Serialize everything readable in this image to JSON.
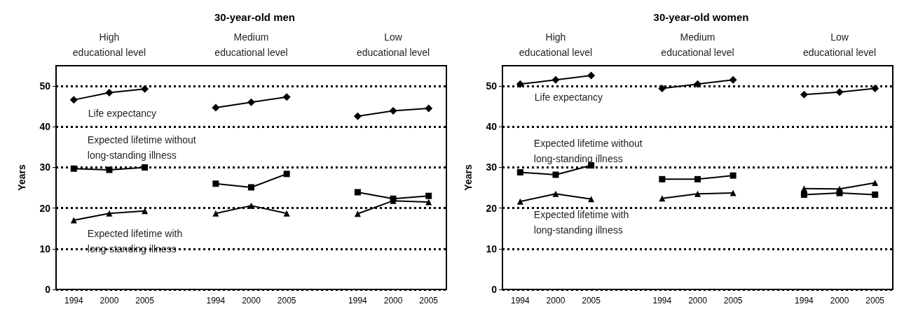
{
  "chart_data": [
    {
      "type": "line",
      "title": "30-year-old men",
      "ylabel": "Years",
      "annotations": [
        "High\neducational level",
        "Medium\neducational level",
        "Low\neducational level"
      ],
      "categories": [
        "1994",
        "2000",
        "2005",
        null,
        "1994",
        "2000",
        "2005",
        null,
        "1994",
        "2000",
        "2005"
      ],
      "ylim": [
        0,
        55
      ],
      "yticks": [
        0,
        10,
        20,
        30,
        40,
        50
      ],
      "grid": "y",
      "line_style": "solid",
      "series": [
        {
          "name": "Life expectancy",
          "color": "#000000",
          "marker": "diamond",
          "values": [
            46.6,
            48.4,
            49.3,
            null,
            44.7,
            46.0,
            47.3,
            null,
            42.6,
            43.9,
            44.5
          ]
        },
        {
          "name": "Expected lifetime without\nlong-standing illness",
          "color": "#000000",
          "marker": "square",
          "values": [
            29.7,
            29.4,
            30.0,
            null,
            26.0,
            25.1,
            28.4,
            null,
            23.9,
            22.3,
            23.0
          ]
        },
        {
          "name": "Expected lifetime with\nlong-standing illness",
          "color": "#000000",
          "marker": "triangle",
          "values": [
            17.0,
            18.7,
            19.3,
            null,
            18.7,
            20.6,
            18.7,
            null,
            18.6,
            21.8,
            21.5
          ]
        }
      ]
    },
    {
      "type": "line",
      "title": "30-year-old women",
      "ylabel": "Years",
      "annotations": [
        "High\neducational level",
        "Medium\neducational level",
        "Low\neducational level"
      ],
      "categories": [
        "1994",
        "2000",
        "2005",
        null,
        "1994",
        "2000",
        "2005",
        null,
        "1994",
        "2000",
        "2005"
      ],
      "ylim": [
        0,
        55
      ],
      "yticks": [
        0,
        10,
        20,
        30,
        40,
        50
      ],
      "grid": "y",
      "line_style": "solid",
      "series": [
        {
          "name": "Life expectancy",
          "color": "#000000",
          "marker": "diamond",
          "values": [
            50.5,
            51.5,
            52.6,
            null,
            49.4,
            50.5,
            51.5,
            null,
            47.9,
            48.5,
            49.4
          ]
        },
        {
          "name": "Expected lifetime without\nlong-standing illness",
          "color": "#000000",
          "marker": "square",
          "values": [
            28.8,
            28.2,
            30.5,
            null,
            27.1,
            27.1,
            28.0,
            null,
            23.3,
            23.7,
            23.3
          ]
        },
        {
          "name": "Expected lifetime with\nlong-standing illness",
          "color": "#000000",
          "marker": "triangle",
          "values": [
            21.6,
            23.5,
            22.2,
            null,
            22.4,
            23.5,
            23.7,
            null,
            24.8,
            24.7,
            26.2
          ]
        }
      ]
    }
  ]
}
